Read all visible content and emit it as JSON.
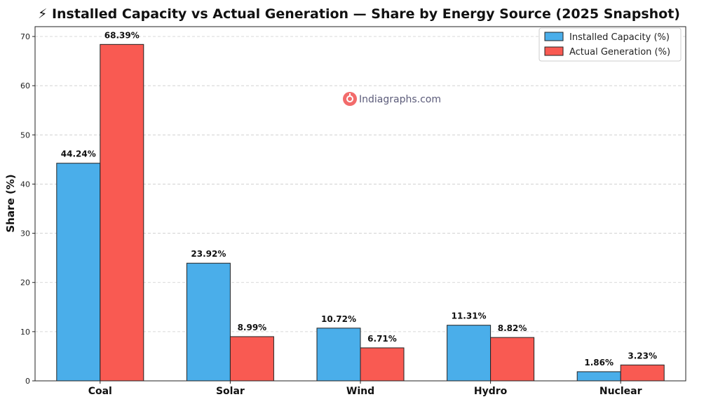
{
  "chart_data": {
    "type": "bar",
    "title": "⚡ Installed Capacity vs Actual Generation — Share by Energy Source (2025 Snapshot)",
    "xlabel": "",
    "ylabel": "Share (%)",
    "ylim": [
      0,
      72
    ],
    "yticks": [
      "0",
      "10",
      "20",
      "30",
      "40",
      "50",
      "60",
      "70"
    ],
    "categories": [
      "Coal",
      "Solar",
      "Wind",
      "Hydro",
      "Nuclear"
    ],
    "series": [
      {
        "name": "Installed Capacity (%)",
        "color": "#4aaeea",
        "values": [
          44.24,
          23.92,
          10.72,
          11.31,
          1.86
        ],
        "labels": [
          "44.24%",
          "23.92%",
          "10.72%",
          "11.31%",
          "1.86%"
        ]
      },
      {
        "name": "Actual Generation (%)",
        "color": "#f95a52",
        "values": [
          68.39,
          8.99,
          6.71,
          8.82,
          3.23
        ],
        "labels": [
          "68.39%",
          "8.99%",
          "6.71%",
          "8.82%",
          "3.23%"
        ]
      }
    ],
    "grid": "horizontal-dashed",
    "legend_position": "top-right"
  },
  "watermark": {
    "text": "Indiagraphs.com",
    "icon": "indiagraphs-logo-icon",
    "color": "#f26b6b"
  }
}
